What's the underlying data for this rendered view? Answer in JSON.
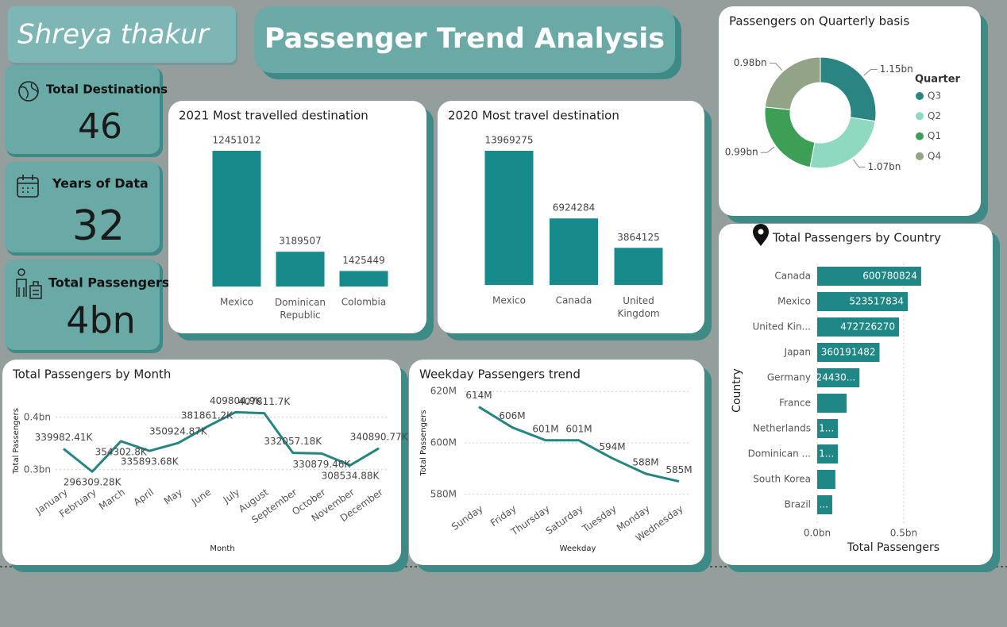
{
  "header": {
    "author": "Shreya thakur",
    "title": "Passenger Trend Analysis"
  },
  "cards": [
    {
      "label": "Total Destinations",
      "value": 46
    },
    {
      "label": "Years of Data",
      "value": 32
    },
    {
      "label": "Total Passengers",
      "value": "4bn"
    }
  ],
  "chart_data": [
    {
      "type": "bar",
      "title": "2021 Most travelled destination",
      "categories": [
        "Mexico",
        "Dominican Republic",
        "Colombia"
      ],
      "values": [
        12451012,
        3189507,
        1425449
      ],
      "color": "#178a8b"
    },
    {
      "type": "bar",
      "title": "2020 Most travel destination",
      "categories": [
        "Mexico",
        "Canada",
        "United Kingdom"
      ],
      "values": [
        13969275,
        6924284,
        3864125
      ],
      "color": "#178a8b"
    },
    {
      "type": "donut",
      "title": "Passengers on Quarterly basis",
      "legend_title": "Quarter",
      "categories": [
        "Q3",
        "Q2",
        "Q1",
        "Q4"
      ],
      "values": [
        1.15,
        1.07,
        0.99,
        0.98
      ],
      "value_labels": [
        "1.15bn",
        "1.07bn",
        "0.99bn",
        "0.98bn"
      ],
      "colors": [
        "#2a8582",
        "#8ed9c0",
        "#3d9e56",
        "#93a387"
      ]
    },
    {
      "type": "hbar",
      "title": "Total Passengers by Country",
      "x_label": "Total Passengers",
      "y_label": "Country",
      "categories": [
        "Canada",
        "Mexico",
        "United Kin...",
        "Japan",
        "Germany",
        "France",
        "Netherlands",
        "Dominican ...",
        "South Korea",
        "Brazil"
      ],
      "values": [
        0.600780824,
        0.523517834,
        0.47272627,
        0.360191482,
        0.2443,
        0.17,
        0.12,
        0.12,
        0.105,
        0.087
      ],
      "value_labels": [
        "600780824",
        "523517834",
        "472726270",
        "360191482",
        "24430...",
        null,
        "1...",
        "1...",
        null,
        "..."
      ],
      "color": "#1f8785",
      "xlim": [
        0,
        0.95
      ],
      "xticks": [
        {
          "value": 0,
          "label": "0.0bn"
        },
        {
          "value": 0.5,
          "label": "0.5bn"
        }
      ]
    },
    {
      "type": "line",
      "title": "Total Passengers by Month",
      "x_label": "Month",
      "y_label": "Total Passengers",
      "categories": [
        "January",
        "February",
        "March",
        "April",
        "May",
        "June",
        "July",
        "August",
        "September",
        "October",
        "November",
        "December"
      ],
      "values": [
        0.33998241,
        0.29630928,
        0.3543028,
        0.33589368,
        0.35092487,
        0.3818612,
        0.4098049,
        0.4078117,
        0.33205718,
        0.33087946,
        0.30853488,
        0.34089077
      ],
      "value_labels": [
        "339982.41K",
        "296309.28K",
        "354302.8K",
        "335893.68K",
        "350924.87K",
        "381861.2K",
        "409804.9K",
        "407811.7K",
        "332057.18K",
        "330879.46K",
        "308534.88K",
        "340890.77K"
      ],
      "color": "#248583",
      "ylim": [
        0.28,
        0.43
      ],
      "yticks": [
        {
          "value": 0.3,
          "label": "0.3bn"
        },
        {
          "value": 0.4,
          "label": "0.4bn"
        }
      ]
    },
    {
      "type": "line",
      "title": "Weekday Passengers trend",
      "x_label": "Weekday",
      "y_label": "Total Passengers",
      "categories": [
        "Sunday",
        "Friday",
        "Thursday",
        "Saturday",
        "Tuesday",
        "Monday",
        "Wednesday"
      ],
      "values": [
        614,
        606,
        601,
        601,
        594,
        588,
        585
      ],
      "value_labels": [
        "614M",
        "606M",
        "601M",
        "601M",
        "594M",
        "588M",
        "585M"
      ],
      "color": "#248583",
      "ylim": [
        579,
        621
      ],
      "yticks": [
        {
          "value": 580,
          "label": "580M"
        },
        {
          "value": 600,
          "label": "600M"
        },
        {
          "value": 620,
          "label": "620M"
        }
      ]
    }
  ]
}
